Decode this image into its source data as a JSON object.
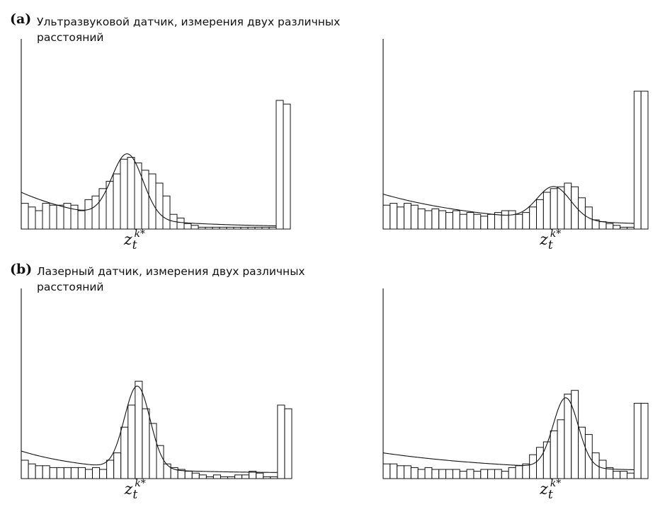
{
  "panels": {
    "a": {
      "letter": "(a)",
      "title": "Ультразвуковой датчик, измерения двух различных расстояний"
    },
    "b": {
      "letter": "(b)",
      "title": "Лазерный датчик, измерения двух различных расстояний"
    }
  },
  "marker_label": {
    "base": "z",
    "sub": "t",
    "sup": "k*"
  },
  "chart_data": [
    {
      "type": "bar",
      "panel": "a",
      "position": "left",
      "title": "",
      "xlabel": "",
      "ylabel": "",
      "bin_count": 38,
      "values": [
        0.14,
        0.12,
        0.1,
        0.14,
        0.13,
        0.13,
        0.14,
        0.13,
        0.1,
        0.16,
        0.18,
        0.22,
        0.26,
        0.3,
        0.38,
        0.39,
        0.36,
        0.32,
        0.3,
        0.25,
        0.18,
        0.08,
        0.06,
        0.03,
        0.02,
        0.01,
        0.01,
        0.01,
        0.01,
        0.01,
        0.01,
        0.01,
        0.01,
        0.01,
        0.01,
        0.01,
        0.7,
        0.68
      ],
      "fit_curve": {
        "kind": "gaussian_plus_decay",
        "peak_x": 15.0,
        "peak_height": 0.35,
        "width": 2.2,
        "baseline_start": 0.19,
        "baseline_decay": 0.09,
        "tail_floor": 0.01
      },
      "marker_bin": 15
    },
    {
      "type": "bar",
      "panel": "a",
      "position": "right",
      "title": "",
      "xlabel": "",
      "ylabel": "",
      "bin_count": 38,
      "values": [
        0.13,
        0.14,
        0.12,
        0.14,
        0.13,
        0.11,
        0.1,
        0.11,
        0.1,
        0.09,
        0.1,
        0.08,
        0.09,
        0.08,
        0.07,
        0.08,
        0.09,
        0.1,
        0.1,
        0.08,
        0.09,
        0.12,
        0.16,
        0.2,
        0.22,
        0.23,
        0.25,
        0.23,
        0.17,
        0.12,
        0.05,
        0.04,
        0.03,
        0.02,
        0.01,
        0.01,
        0.75,
        0.75
      ],
      "fit_curve": {
        "kind": "gaussian_plus_decay",
        "peak_x": 24.5,
        "peak_height": 0.18,
        "width": 2.4,
        "baseline_start": 0.18,
        "baseline_decay": 0.06,
        "tail_floor": 0.01
      },
      "marker_bin": 23
    },
    {
      "type": "bar",
      "panel": "b",
      "position": "left",
      "title": "",
      "xlabel": "",
      "ylabel": "",
      "bin_count": 38,
      "values": [
        0.1,
        0.08,
        0.07,
        0.07,
        0.06,
        0.06,
        0.06,
        0.06,
        0.06,
        0.05,
        0.06,
        0.05,
        0.1,
        0.14,
        0.28,
        0.4,
        0.53,
        0.38,
        0.3,
        0.18,
        0.08,
        0.06,
        0.05,
        0.04,
        0.03,
        0.02,
        0.01,
        0.02,
        0.01,
        0.01,
        0.02,
        0.02,
        0.04,
        0.03,
        0.01,
        0.01,
        0.4,
        0.38
      ],
      "fit_curve": {
        "kind": "gaussian_plus_decay",
        "peak_x": 16.3,
        "peak_height": 0.45,
        "width": 1.8,
        "baseline_start": 0.12,
        "baseline_decay": 0.1,
        "tail_floor": 0.03
      },
      "marker_bin": 15
    },
    {
      "type": "bar",
      "panel": "b",
      "position": "right",
      "title": "",
      "xlabel": "",
      "ylabel": "",
      "bin_count": 38,
      "values": [
        0.08,
        0.08,
        0.07,
        0.07,
        0.06,
        0.05,
        0.06,
        0.05,
        0.05,
        0.05,
        0.05,
        0.04,
        0.05,
        0.04,
        0.05,
        0.05,
        0.05,
        0.04,
        0.06,
        0.07,
        0.08,
        0.13,
        0.17,
        0.2,
        0.26,
        0.32,
        0.46,
        0.48,
        0.28,
        0.24,
        0.14,
        0.1,
        0.06,
        0.04,
        0.04,
        0.03,
        0.41,
        0.41
      ],
      "fit_curve": {
        "kind": "gaussian_plus_decay",
        "peak_x": 26.2,
        "peak_height": 0.38,
        "width": 1.8,
        "baseline_start": 0.11,
        "baseline_decay": 0.05,
        "tail_floor": 0.03
      },
      "marker_bin": 23
    }
  ]
}
